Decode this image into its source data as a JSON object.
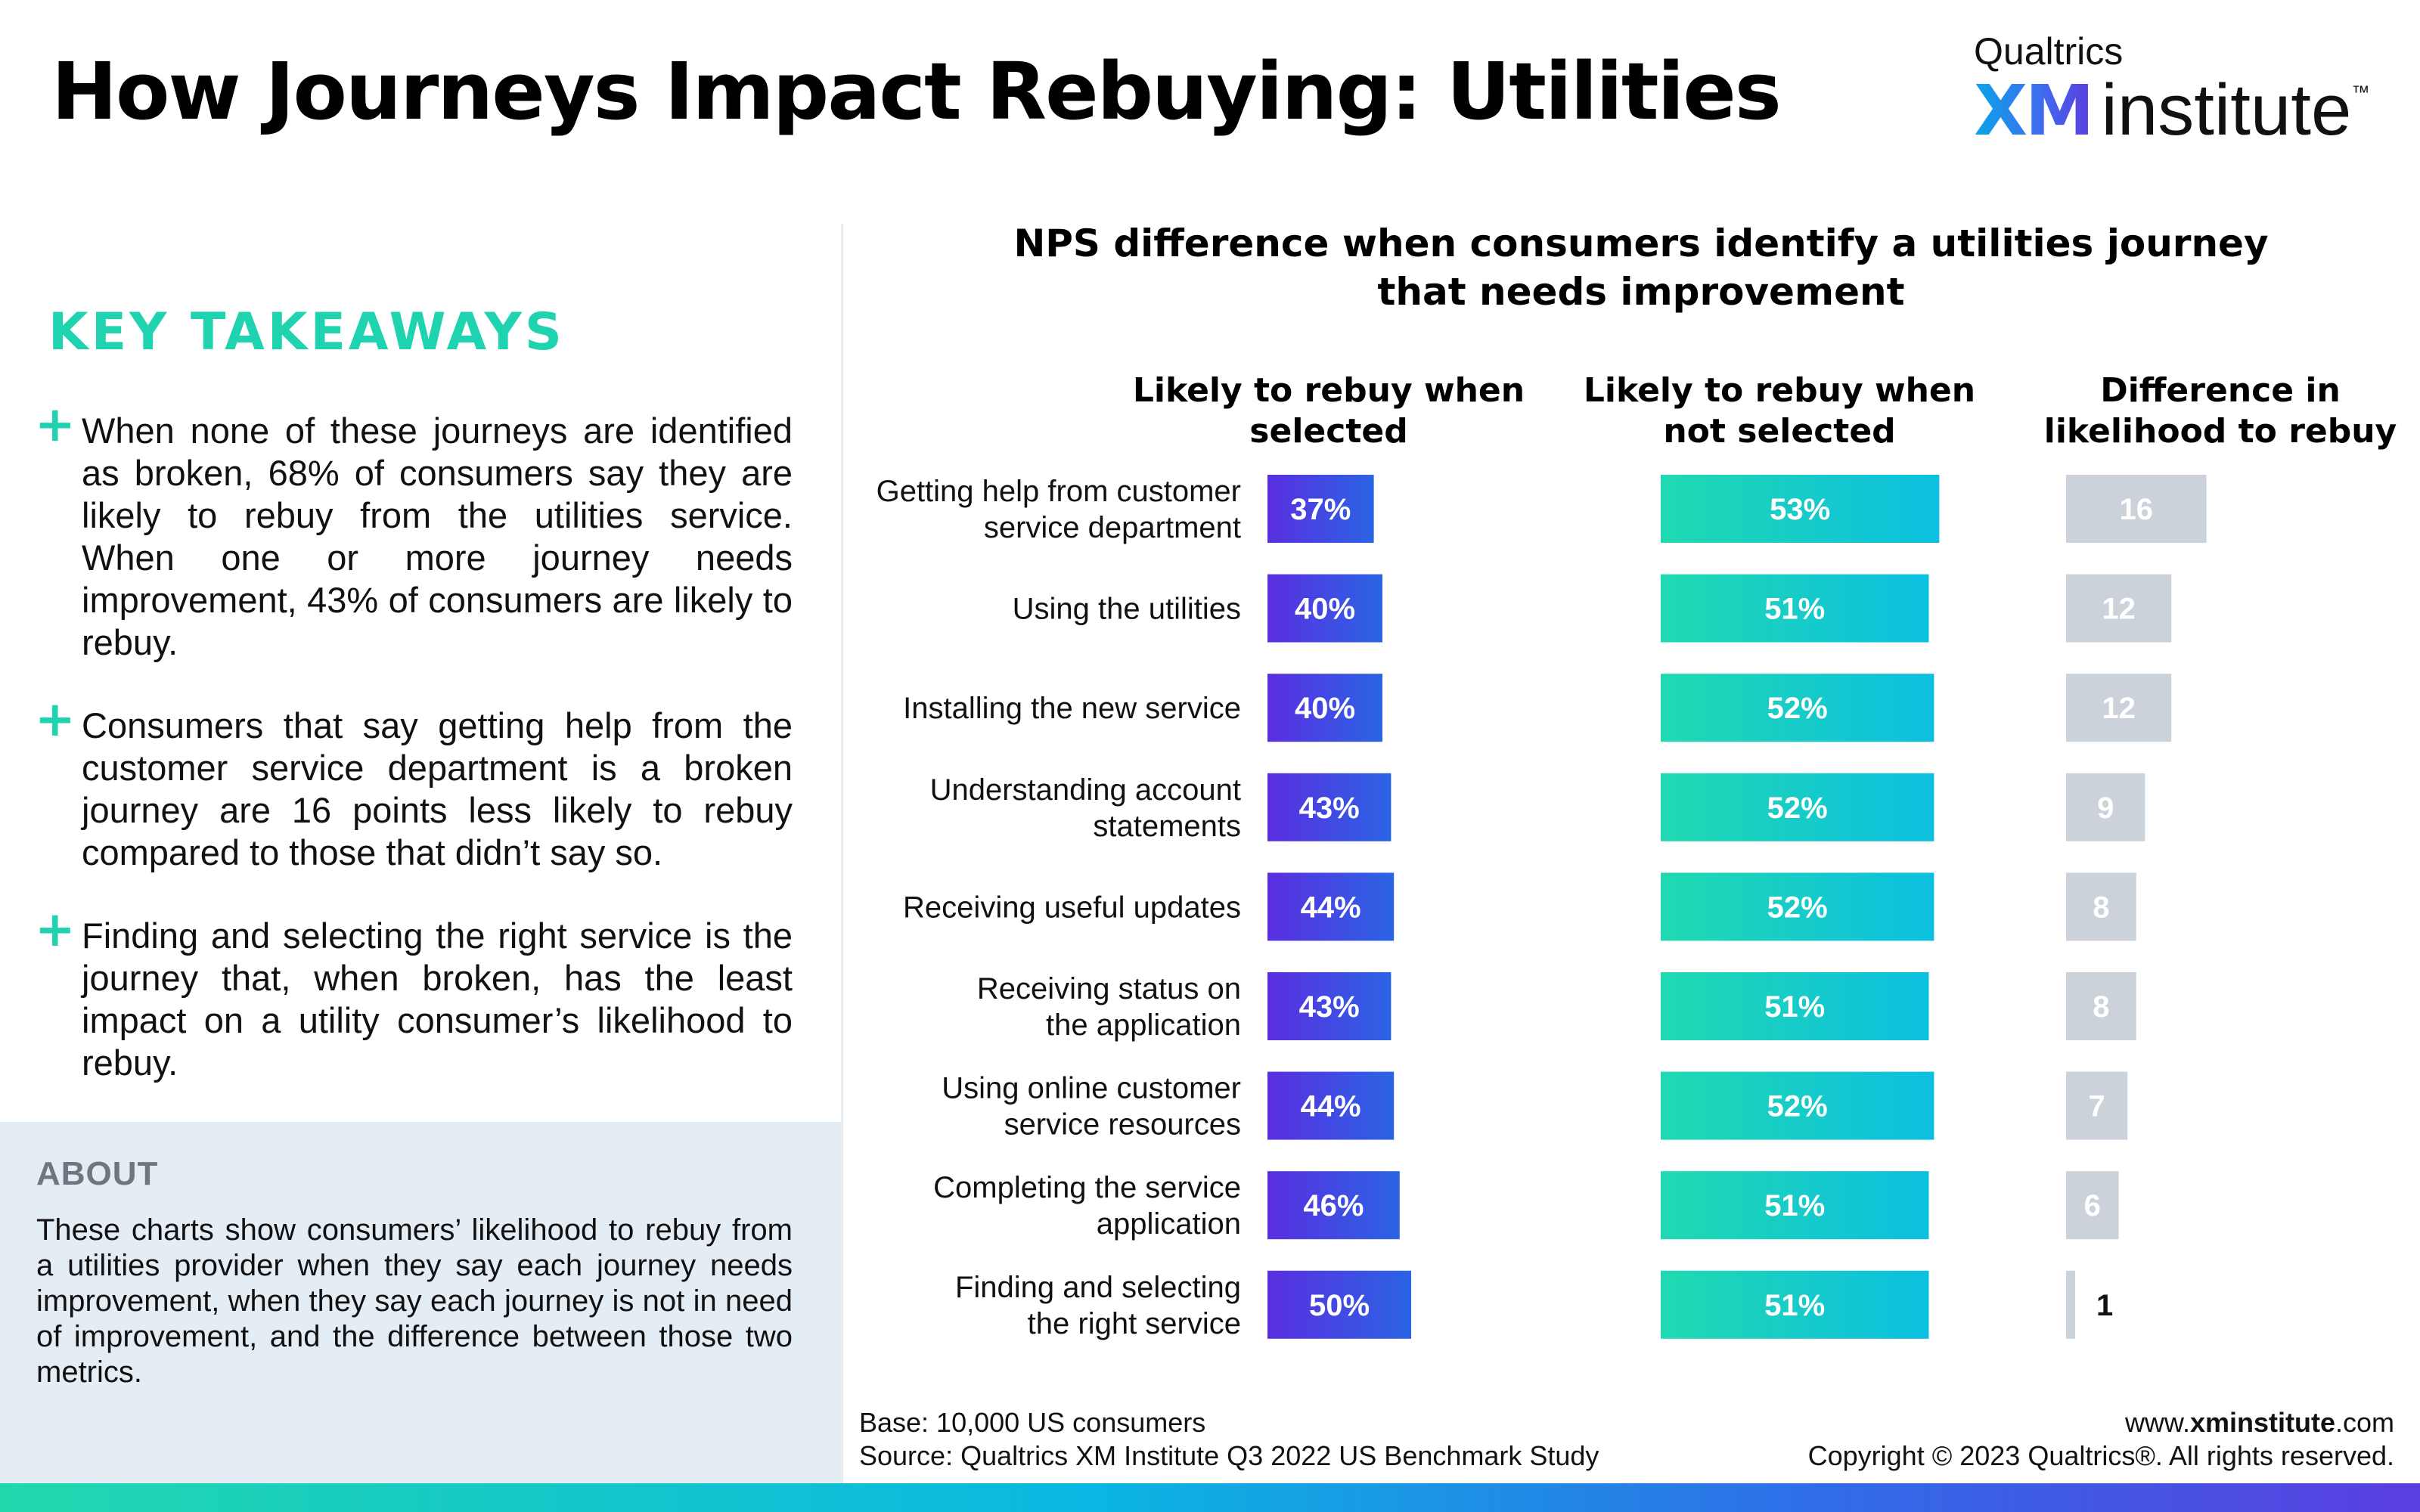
{
  "header": {
    "title": "How Journeys Impact Rebuying: Utilities",
    "logo": {
      "top": "Qualtrics",
      "brand": "XM",
      "product": "institute",
      "tm": "™"
    }
  },
  "takeaways": {
    "title": "KEY TAKEAWAYS",
    "items": [
      "When none of these journeys are identified as broken, 68% of consumers say they are likely to rebuy from the utilities service. When one or more journey needs improvement, 43% of consumers are likely to rebuy.",
      "Consumers that say getting help from the customer service department is a broken journey are 16 points less likely to rebuy compared to those that didn’t say so.",
      "Finding and selecting the right service is the journey that, when broken, has the least impact on a utility consumer’s likelihood to rebuy."
    ]
  },
  "about": {
    "title": "ABOUT",
    "text": "These charts show consumers’ likelihood to rebuy from a utilities provider when they say each journey needs improvement, when they say each journey is not in need of improvement, and the difference between those two metrics."
  },
  "chart_data": {
    "type": "bar",
    "orientation": "horizontal",
    "title": "NPS difference when consumers identify a utilities journey that needs improvement",
    "categories": [
      "Getting help from customer service department",
      "Using the utilities",
      "Installing the new service",
      "Understanding account statements",
      "Receiving useful updates",
      "Receiving status on the application",
      "Using online customer service resources",
      "Completing the service application",
      "Finding and selecting the right service"
    ],
    "series": [
      {
        "name": "Likely to rebuy when selected",
        "values": [
          37,
          40,
          40,
          43,
          44,
          43,
          44,
          46,
          50
        ],
        "unit": "%",
        "color": "#5a2ee0"
      },
      {
        "name": "Likely to rebuy when not selected",
        "values": [
          53,
          51,
          52,
          52,
          52,
          51,
          52,
          51,
          51
        ],
        "unit": "%",
        "color": "#1fd6b4"
      },
      {
        "name": "Difference in likelihood to rebuy",
        "values": [
          16,
          12,
          12,
          9,
          8,
          8,
          7,
          6,
          1
        ],
        "unit": "",
        "color": "#cbd2d9"
      }
    ]
  },
  "footer": {
    "base": "Base: 10,000 US consumers",
    "source": "Source: Qualtrics XM Institute Q3 2022 US Benchmark Study",
    "url_prefix": "www.",
    "url_bold": "xminstitute",
    "url_suffix": ".com",
    "copyright": "Copyright © 2023 Qualtrics®. All rights reserved."
  }
}
